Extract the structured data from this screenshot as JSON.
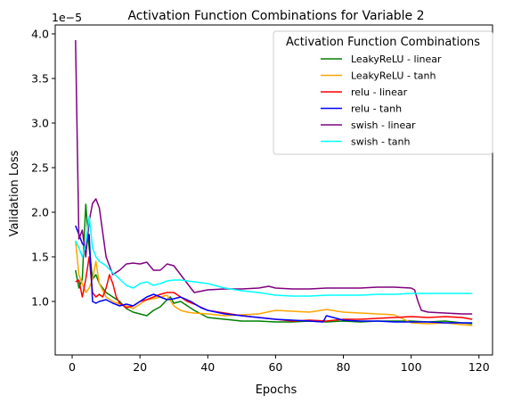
{
  "chart_data": {
    "type": "line",
    "title": "Activation Function Combinations for Variable 2",
    "xlabel": "Epochs",
    "ylabel": "Validation Loss",
    "y_offset_text": "1e−5",
    "y_scale_exponent": -5,
    "xlim": [
      -5,
      124
    ],
    "ylim": [
      0.4,
      4.1
    ],
    "xticks": [
      0,
      20,
      40,
      60,
      80,
      100,
      120
    ],
    "yticks": [
      1.0,
      1.5,
      2.0,
      2.5,
      3.0,
      3.5,
      4.0
    ],
    "xtick_labels": [
      "0",
      "20",
      "40",
      "60",
      "80",
      "100",
      "120"
    ],
    "ytick_labels": [
      "1.0",
      "1.5",
      "2.0",
      "2.5",
      "3.0",
      "3.5",
      "4.0"
    ],
    "grid": false,
    "legend": {
      "title": "Activation Function Combinations",
      "placement": "top-right"
    },
    "series": [
      {
        "name": "LeakyReLU - linear",
        "color": "#008000",
        "x": [
          1,
          2,
          3,
          4,
          5,
          6,
          7,
          8,
          10,
          12,
          14,
          16,
          18,
          20,
          22,
          24,
          26,
          28,
          29,
          30,
          32,
          34,
          36,
          40,
          45,
          50,
          55,
          60,
          65,
          70,
          75,
          80,
          85,
          90,
          95,
          100,
          105,
          110,
          115,
          118
        ],
        "y": [
          1.35,
          1.15,
          1.25,
          2.09,
          1.6,
          1.25,
          1.3,
          1.2,
          1.1,
          1.05,
          1.0,
          0.92,
          0.88,
          0.86,
          0.84,
          0.9,
          0.94,
          1.02,
          1.05,
          0.98,
          1.0,
          0.95,
          0.9,
          0.82,
          0.8,
          0.78,
          0.78,
          0.77,
          0.77,
          0.78,
          0.77,
          0.78,
          0.77,
          0.78,
          0.78,
          0.78,
          0.77,
          0.78,
          0.76,
          0.75
        ]
      },
      {
        "name": "LeakyReLU - tanh",
        "color": "#FFA500",
        "x": [
          1,
          2,
          3,
          4,
          5,
          6,
          7,
          8,
          10,
          12,
          14,
          16,
          18,
          20,
          22,
          24,
          26,
          28,
          30,
          32,
          34,
          36,
          40,
          45,
          50,
          55,
          60,
          65,
          70,
          75,
          80,
          85,
          90,
          95,
          100,
          105,
          110,
          115,
          118
        ],
        "y": [
          1.68,
          1.3,
          1.2,
          1.1,
          1.15,
          1.25,
          1.45,
          1.2,
          1.05,
          1.0,
          0.97,
          0.95,
          0.92,
          0.97,
          1.02,
          1.03,
          1.05,
          1.07,
          0.95,
          0.9,
          0.88,
          0.87,
          0.86,
          0.84,
          0.85,
          0.86,
          0.9,
          0.89,
          0.88,
          0.91,
          0.88,
          0.87,
          0.86,
          0.85,
          0.76,
          0.75,
          0.76,
          0.74,
          0.73
        ]
      },
      {
        "name": "relu - linear",
        "color": "#FF0000",
        "x": [
          1,
          2,
          3,
          4,
          5,
          6,
          7,
          8,
          9,
          10,
          11,
          12,
          13,
          14,
          16,
          18,
          20,
          22,
          24,
          26,
          28,
          30,
          32,
          34,
          36,
          40,
          45,
          50,
          55,
          60,
          65,
          70,
          75,
          80,
          85,
          90,
          95,
          100,
          105,
          110,
          115,
          118
        ],
        "y": [
          1.22,
          1.24,
          1.05,
          1.25,
          1.5,
          1.1,
          1.05,
          1.08,
          1.05,
          1.15,
          1.3,
          1.2,
          1.05,
          0.98,
          0.93,
          0.95,
          1.0,
          1.02,
          1.05,
          1.08,
          1.1,
          1.1,
          1.05,
          1.0,
          0.97,
          0.9,
          0.87,
          0.84,
          0.82,
          0.8,
          0.78,
          0.79,
          0.78,
          0.8,
          0.8,
          0.81,
          0.82,
          0.83,
          0.82,
          0.83,
          0.82,
          0.8
        ]
      },
      {
        "name": "relu - tanh",
        "color": "#0000FF",
        "x": [
          1,
          2,
          3,
          4,
          5,
          6,
          7,
          8,
          10,
          12,
          14,
          16,
          18,
          20,
          22,
          24,
          26,
          28,
          30,
          32,
          35,
          38,
          40,
          45,
          50,
          55,
          60,
          65,
          70,
          74,
          75,
          80,
          85,
          90,
          95,
          100,
          105,
          110,
          115,
          118
        ],
        "y": [
          1.85,
          1.75,
          1.65,
          1.6,
          1.75,
          1.0,
          0.98,
          1.0,
          1.02,
          0.98,
          0.95,
          0.97,
          0.95,
          1.0,
          1.05,
          1.08,
          1.05,
          1.02,
          1.03,
          1.05,
          1.0,
          0.93,
          0.9,
          0.86,
          0.84,
          0.82,
          0.8,
          0.79,
          0.78,
          0.77,
          0.84,
          0.79,
          0.78,
          0.78,
          0.77,
          0.77,
          0.77,
          0.76,
          0.76,
          0.76
        ]
      },
      {
        "name": "swish - linear",
        "color": "#800080",
        "x": [
          1,
          2,
          3,
          4,
          5,
          6,
          7,
          8,
          10,
          12,
          14,
          16,
          18,
          20,
          22,
          24,
          26,
          28,
          30,
          32,
          34,
          36,
          40,
          45,
          50,
          55,
          58,
          60,
          65,
          70,
          75,
          80,
          85,
          90,
          95,
          100,
          101,
          102,
          103,
          105,
          110,
          115,
          118
        ],
        "y": [
          3.93,
          1.7,
          1.8,
          1.5,
          1.9,
          2.1,
          2.15,
          2.05,
          1.5,
          1.3,
          1.35,
          1.42,
          1.43,
          1.42,
          1.44,
          1.35,
          1.35,
          1.42,
          1.4,
          1.3,
          1.2,
          1.1,
          1.13,
          1.14,
          1.14,
          1.15,
          1.17,
          1.15,
          1.14,
          1.14,
          1.15,
          1.15,
          1.15,
          1.16,
          1.16,
          1.15,
          1.13,
          1.0,
          0.9,
          0.88,
          0.87,
          0.86,
          0.86
        ]
      },
      {
        "name": "swish - tanh",
        "color": "#00FFFF",
        "x": [
          1,
          2,
          3,
          4,
          5,
          6,
          7,
          8,
          10,
          12,
          14,
          16,
          18,
          20,
          22,
          24,
          26,
          28,
          30,
          32,
          34,
          36,
          40,
          45,
          50,
          55,
          60,
          65,
          70,
          75,
          80,
          85,
          90,
          95,
          100,
          105,
          110,
          115,
          118
        ],
        "y": [
          1.68,
          1.6,
          1.5,
          1.65,
          1.95,
          1.6,
          1.5,
          1.45,
          1.4,
          1.32,
          1.25,
          1.18,
          1.15,
          1.2,
          1.22,
          1.18,
          1.2,
          1.23,
          1.24,
          1.24,
          1.23,
          1.22,
          1.2,
          1.15,
          1.12,
          1.1,
          1.07,
          1.06,
          1.06,
          1.07,
          1.07,
          1.07,
          1.08,
          1.08,
          1.09,
          1.09,
          1.09,
          1.09,
          1.09
        ]
      }
    ]
  }
}
